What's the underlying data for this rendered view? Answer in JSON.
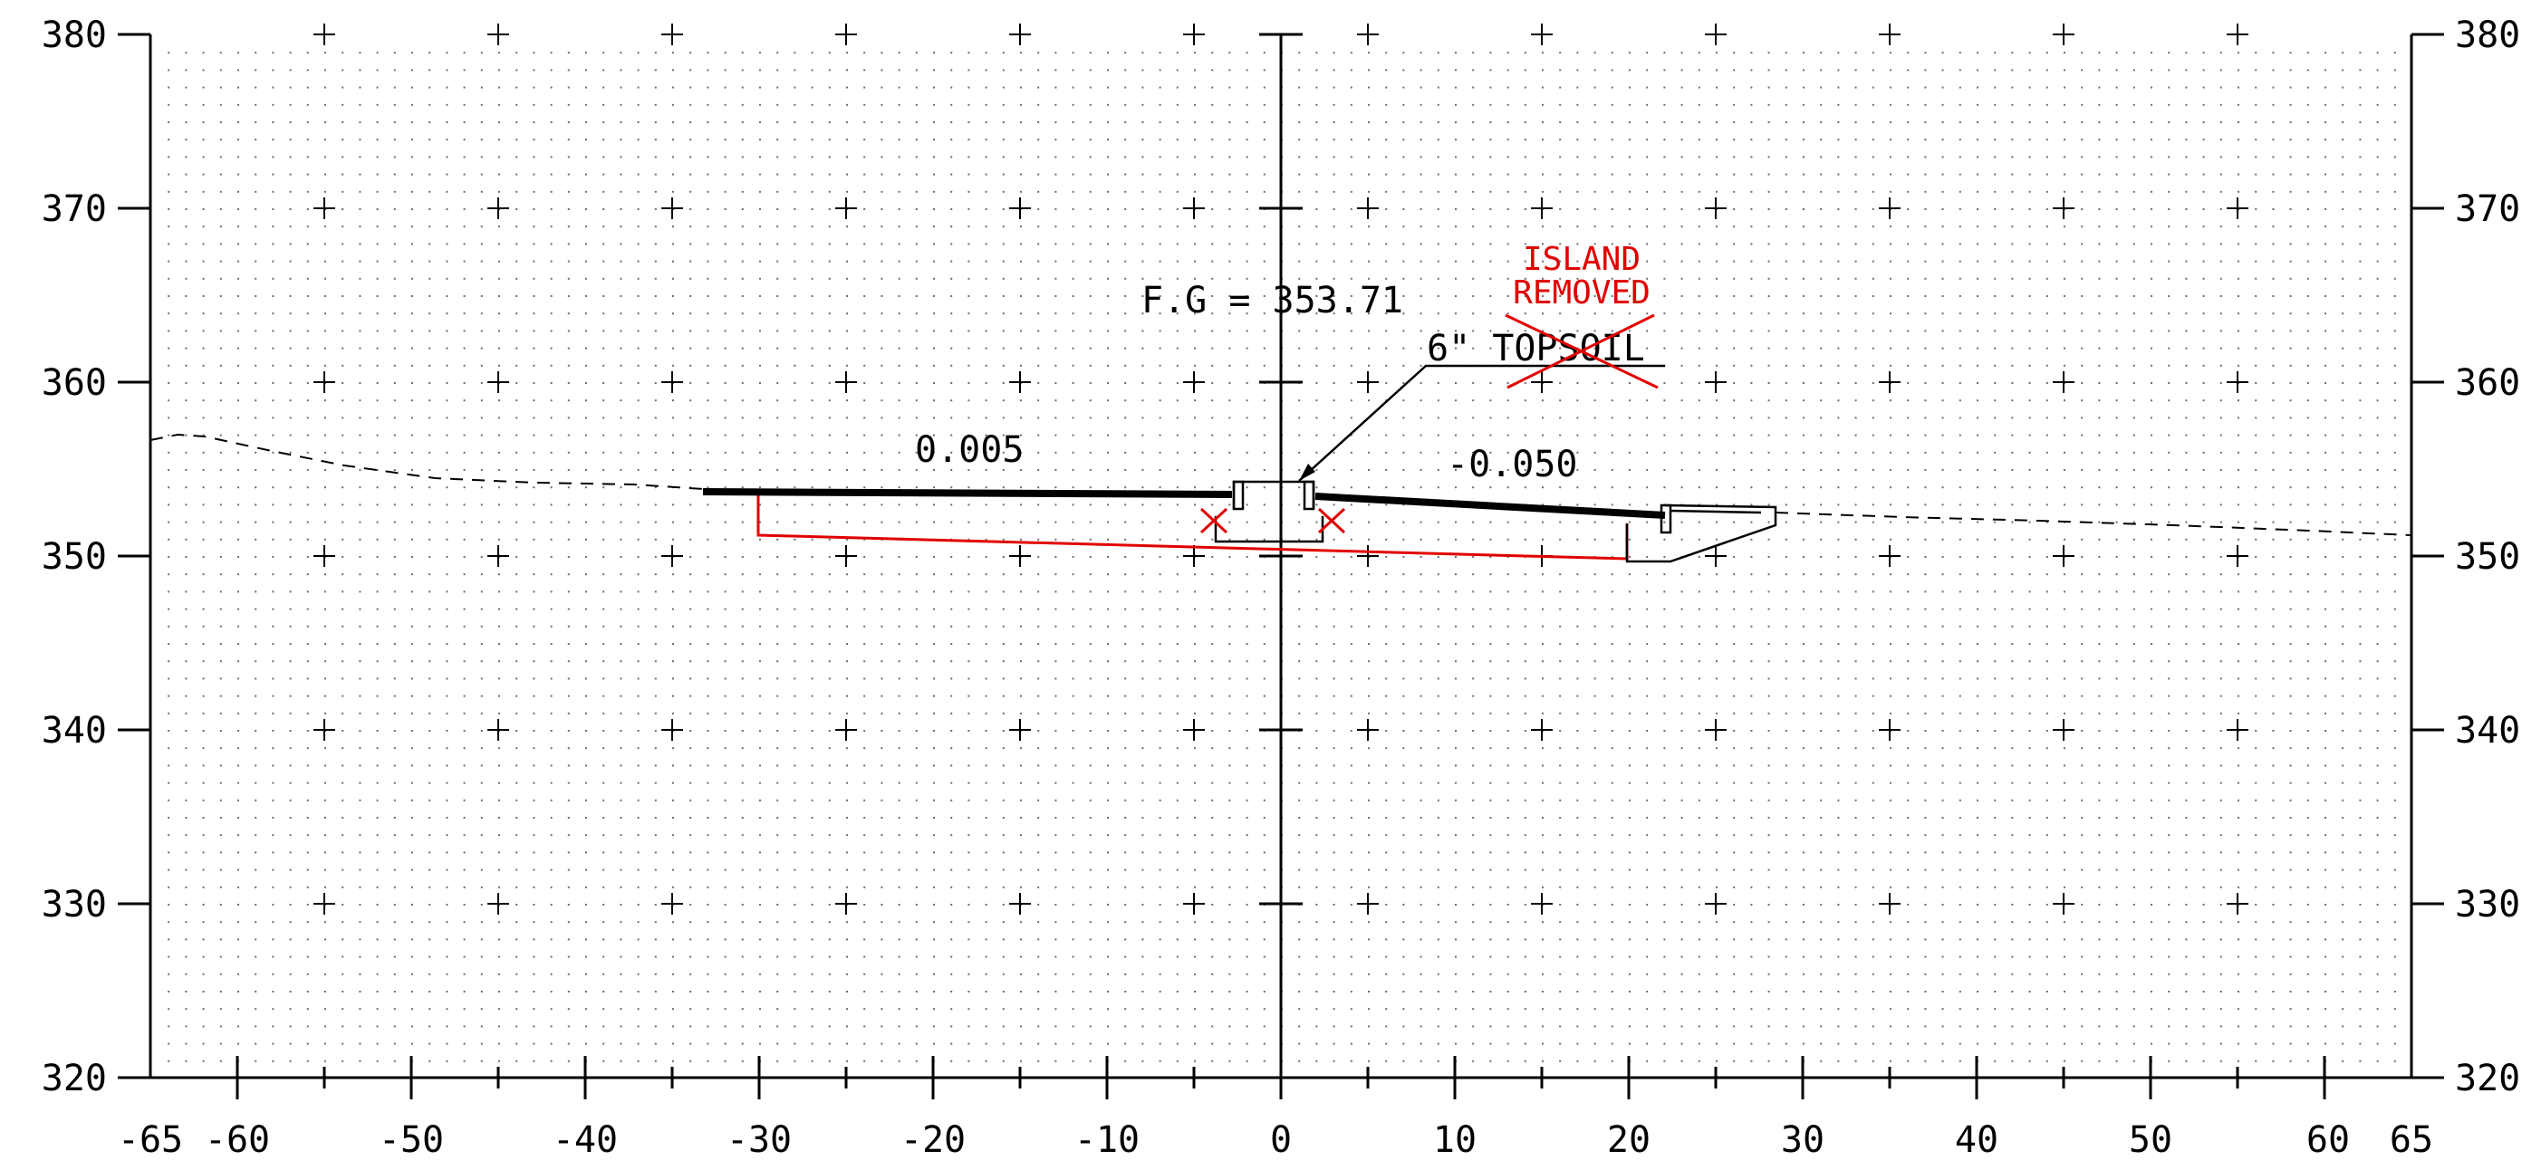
{
  "drawing": {
    "x_axis": {
      "min": -65,
      "max": 65,
      "major_step": 10
    },
    "y_axis": {
      "min": 320,
      "max": 380,
      "major_step": 10
    },
    "x_tick_labels": [
      "-65",
      "-60",
      "-50",
      "-40",
      "-30",
      "-20",
      "-10",
      "0",
      "10",
      "20",
      "30",
      "40",
      "50",
      "60",
      "65"
    ],
    "y_tick_labels": [
      "380",
      "370",
      "360",
      "350",
      "340",
      "330",
      "320"
    ],
    "annotations": {
      "finished_grade": "F.G = 353.71",
      "topsoil": "6\" TOPSOIL",
      "island_line1": "ISLAND",
      "island_line2": "REMOVED",
      "slope_left": "0.005",
      "slope_right": "-0.050"
    },
    "colors": {
      "proposed": "#000000",
      "removal": "#e10000",
      "grid": "#000000"
    }
  }
}
